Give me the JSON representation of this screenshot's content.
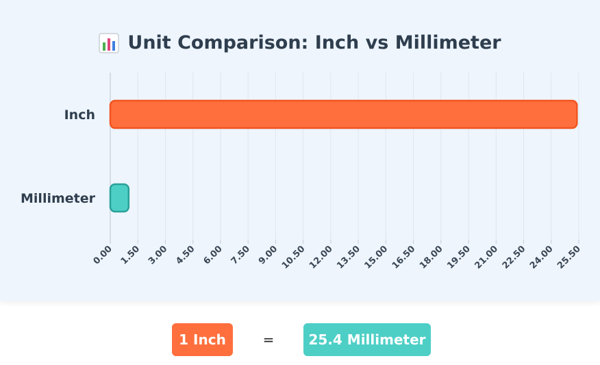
{
  "title": "Unit Comparison: Inch vs Millimeter",
  "title_icon": "bar-chart-icon",
  "colors": {
    "inch_fill": "#ff6f3d",
    "inch_border": "#f2541f",
    "mm_fill": "#4dcfc6",
    "mm_border": "#2aa198",
    "grid": "#dfe6ee",
    "panel_bg": "#eef5fd"
  },
  "chart_data": {
    "type": "bar",
    "orientation": "horizontal",
    "title": "Unit Comparison: Inch vs Millimeter",
    "categories": [
      "Inch",
      "Millimeter"
    ],
    "values": [
      25.4,
      1
    ],
    "xlim": [
      0,
      25.5
    ],
    "x_ticks": [
      "0.00",
      "1.50",
      "3.00",
      "4.50",
      "6.00",
      "7.50",
      "9.00",
      "10.50",
      "12.00",
      "13.50",
      "15.00",
      "16.50",
      "18.00",
      "19.50",
      "21.00",
      "22.50",
      "24.00",
      "25.50"
    ],
    "grid": true,
    "legend": "none"
  },
  "formula": {
    "left": "1 Inch",
    "equals": "=",
    "right": "25.4 Millimeter"
  }
}
